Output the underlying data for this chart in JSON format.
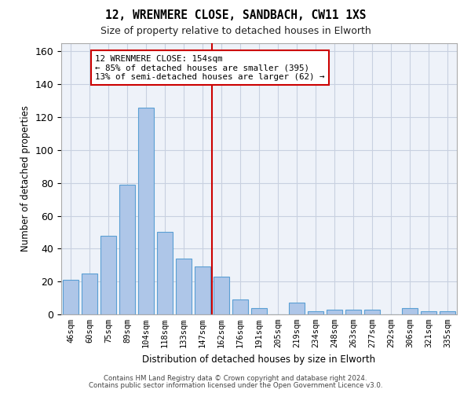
{
  "title1": "12, WRENMERE CLOSE, SANDBACH, CW11 1XS",
  "title2": "Size of property relative to detached houses in Elworth",
  "xlabel": "Distribution of detached houses by size in Elworth",
  "ylabel": "Number of detached properties",
  "bar_labels": [
    "46sqm",
    "60sqm",
    "75sqm",
    "89sqm",
    "104sqm",
    "118sqm",
    "133sqm",
    "147sqm",
    "162sqm",
    "176sqm",
    "191sqm",
    "205sqm",
    "219sqm",
    "234sqm",
    "248sqm",
    "263sqm",
    "277sqm",
    "292sqm",
    "306sqm",
    "321sqm",
    "335sqm"
  ],
  "bar_values": [
    21,
    25,
    48,
    79,
    126,
    50,
    34,
    29,
    23,
    9,
    4,
    0,
    7,
    2,
    3,
    3,
    3,
    0,
    4,
    2,
    2
  ],
  "bar_color": "#aec6e8",
  "bar_edge_color": "#5a9fd4",
  "annotation_text": "12 WRENMERE CLOSE: 154sqm\n← 85% of detached houses are smaller (395)\n13% of semi-detached houses are larger (62) →",
  "vline_color": "#cc0000",
  "annotation_box_color": "#cc0000",
  "ylim": [
    0,
    165
  ],
  "yticks": [
    0,
    20,
    40,
    60,
    80,
    100,
    120,
    140,
    160
  ],
  "grid_color": "#c8d0e0",
  "bg_color": "#eef2f9",
  "footer1": "Contains HM Land Registry data © Crown copyright and database right 2024.",
  "footer2": "Contains public sector information licensed under the Open Government Licence v3.0."
}
